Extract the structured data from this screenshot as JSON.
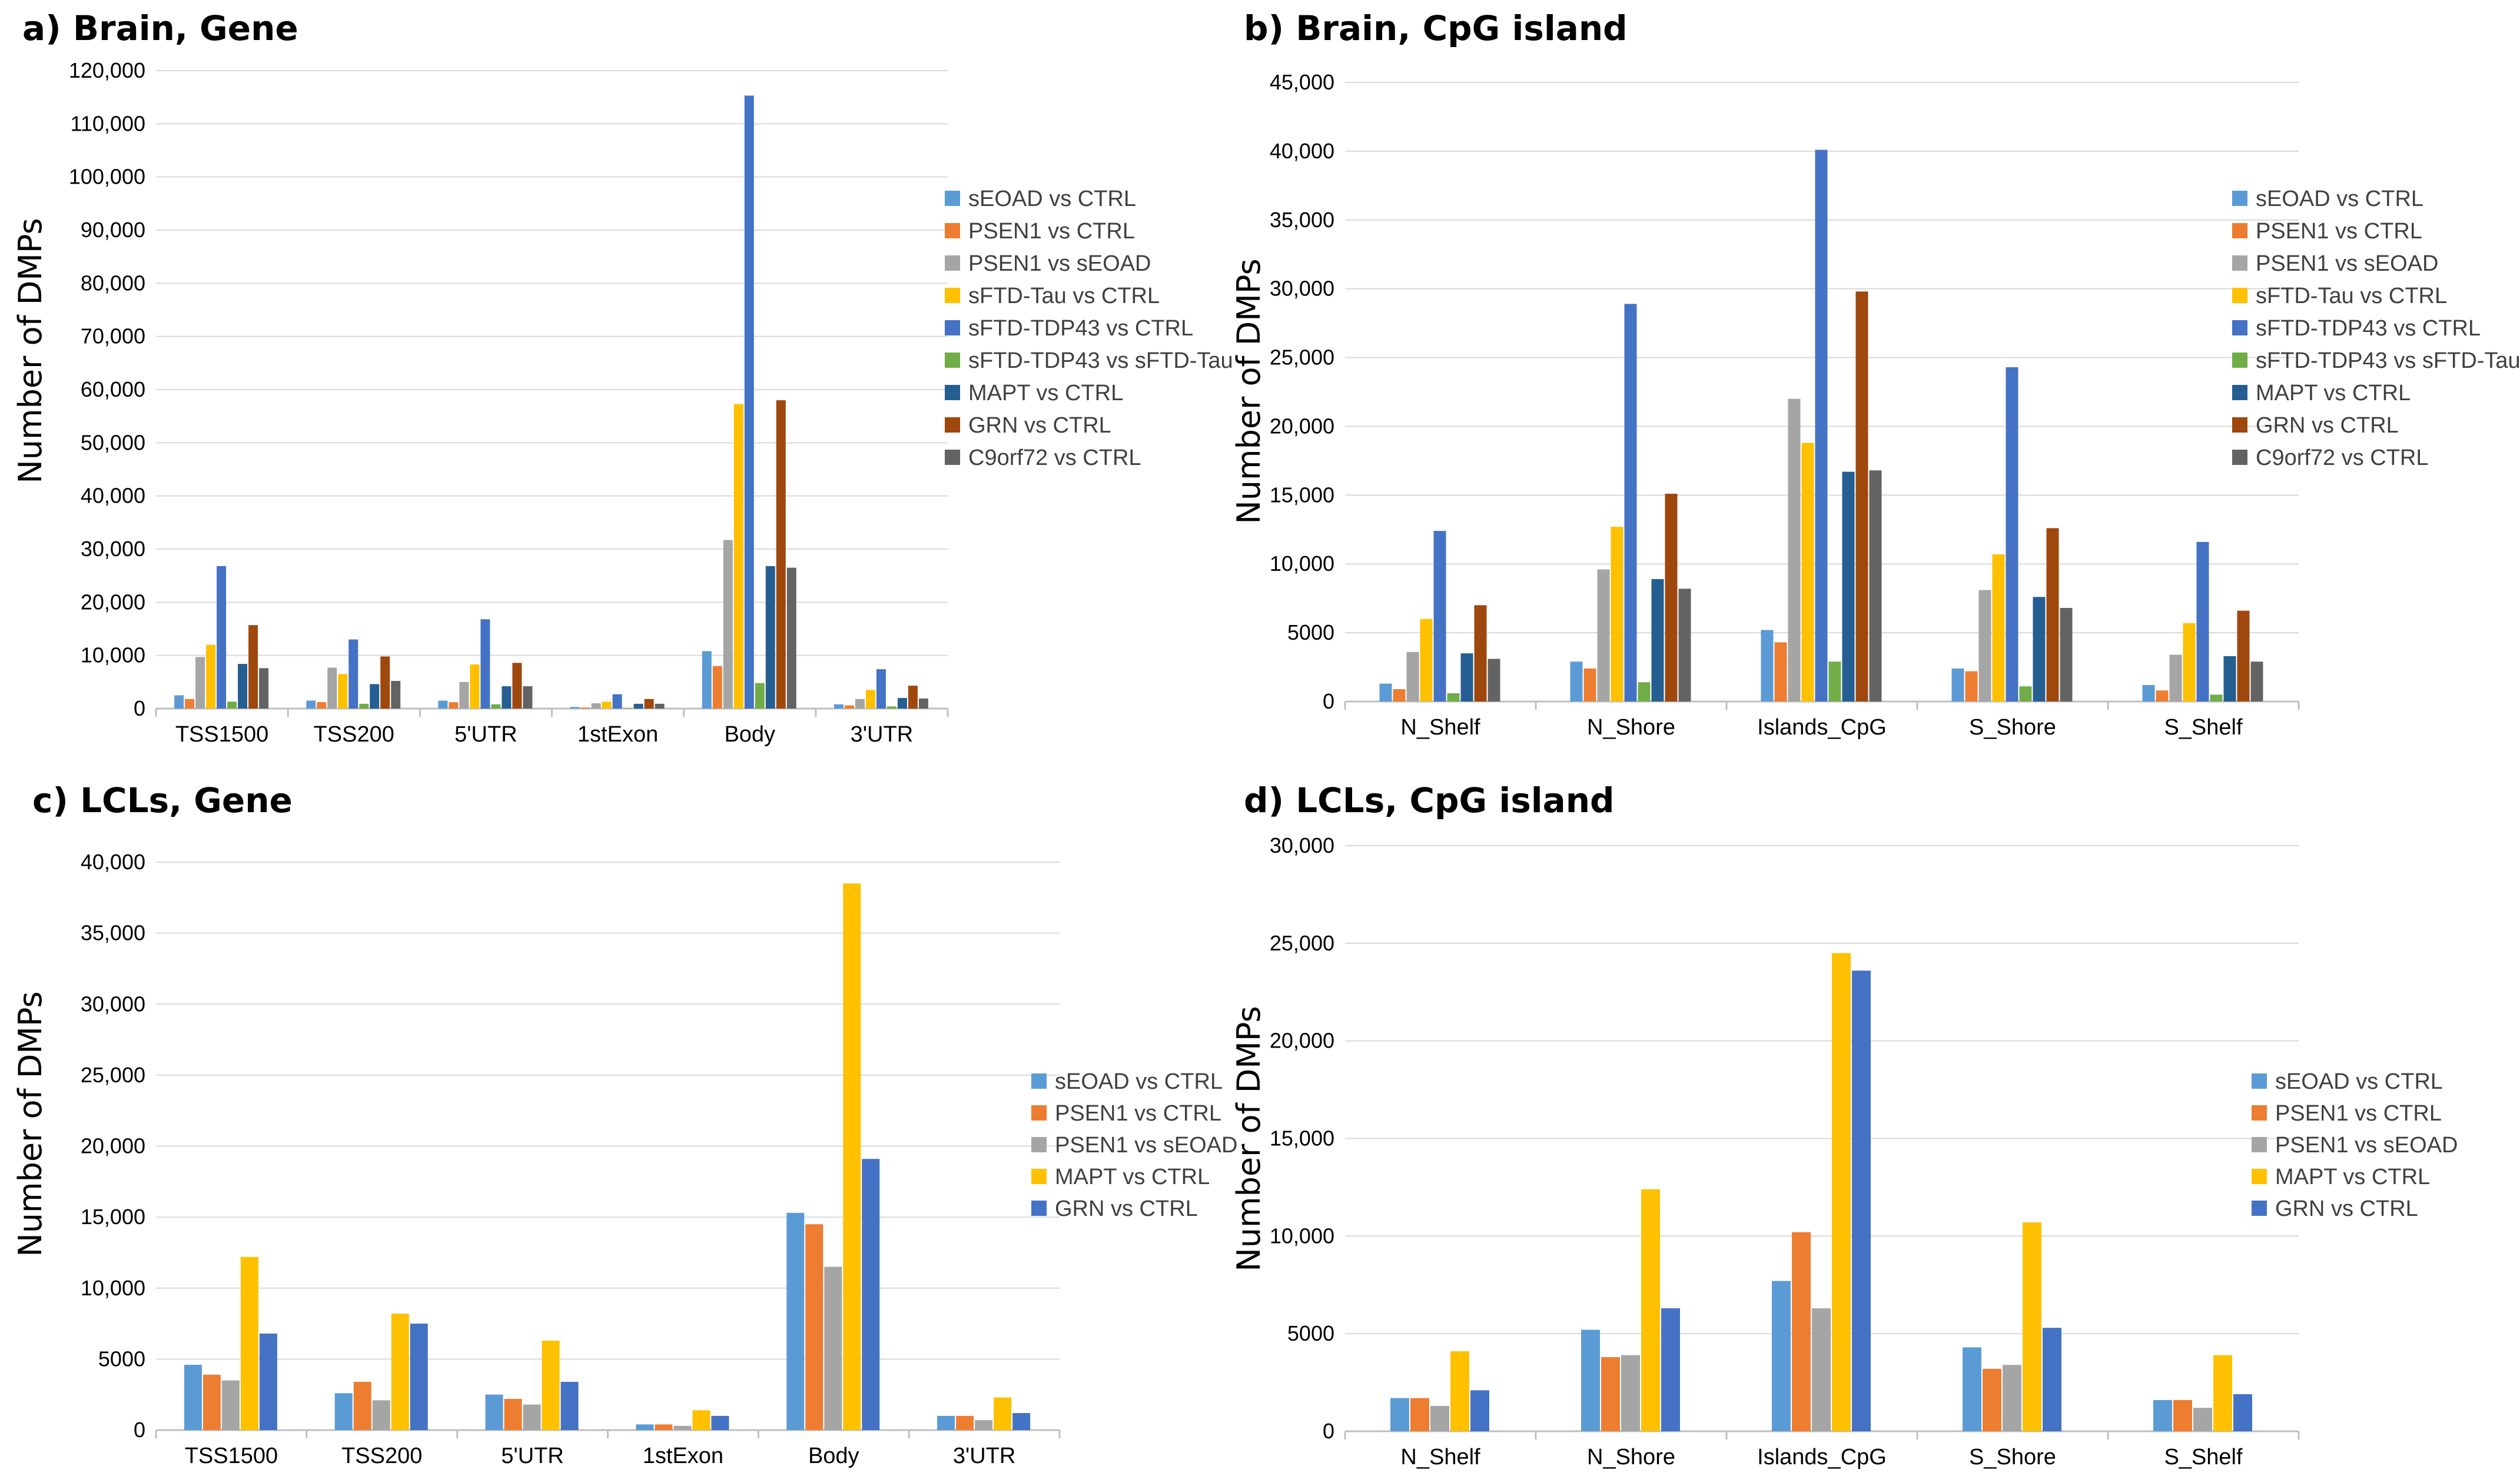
{
  "colors": {
    "sEOAD vs CTRL": "#5b9bd5",
    "PSEN1 vs CTRL": "#ed7d31",
    "PSEN1 vs sEOAD": "#a5a5a5",
    "sFTD-Tau vs CTRL": "#ffc000",
    "sFTD-TDP43 vs CTRL": "#4472c4",
    "sFTD-TDP43 vs sFTD-Tau": "#70ad47",
    "MAPT vs CTRL": "#255e91",
    "GRN vs CTRL": "#9e480e",
    "C9orf72 vs CTRL": "#636363",
    "MAPT vs CTRL (LCL)": "#ffc000",
    "GRN vs CTRL (LCL)": "#4472c4"
  },
  "chart_data": [
    {
      "type": "bar",
      "title": "a) Brain, Gene",
      "xlabel": "",
      "ylabel": "Number of DMPs",
      "ylim": [
        0,
        120000
      ],
      "yticks": [
        0,
        10000,
        20000,
        30000,
        40000,
        50000,
        60000,
        70000,
        80000,
        90000,
        100000,
        110000,
        120000
      ],
      "ytick_labels": [
        "0",
        "10,000",
        "20,000",
        "30,000",
        "40,000",
        "50,000",
        "60,000",
        "70,000",
        "80,000",
        "90,000",
        "100,000",
        "110,000",
        "120,000"
      ],
      "grid": true,
      "legend": "right",
      "categories": [
        "TSS1500",
        "TSS200",
        "5'UTR",
        "1stExon",
        "Body",
        "3'UTR"
      ],
      "series": [
        {
          "name": "sEOAD vs CTRL",
          "values": [
            2500,
            1500,
            1500,
            300,
            10800,
            800
          ]
        },
        {
          "name": "PSEN1 vs CTRL",
          "values": [
            1800,
            1200,
            1200,
            200,
            8000,
            600
          ]
        },
        {
          "name": "PSEN1 vs sEOAD",
          "values": [
            9700,
            7700,
            5000,
            1000,
            31700,
            1800
          ]
        },
        {
          "name": "sFTD-Tau vs CTRL",
          "values": [
            12000,
            6500,
            8300,
            1300,
            57300,
            3500
          ]
        },
        {
          "name": "sFTD-TDP43 vs CTRL",
          "values": [
            26800,
            13000,
            16800,
            2700,
            115300,
            7400
          ]
        },
        {
          "name": "sFTD-TDP43 vs sFTD-Tau",
          "values": [
            1300,
            900,
            800,
            100,
            4800,
            400
          ]
        },
        {
          "name": "MAPT vs CTRL",
          "values": [
            8400,
            4600,
            4200,
            900,
            26800,
            2000
          ]
        },
        {
          "name": "GRN vs CTRL",
          "values": [
            15700,
            9800,
            8600,
            1800,
            58000,
            4300
          ]
        },
        {
          "name": "C9orf72 vs CTRL",
          "values": [
            7600,
            5200,
            4200,
            900,
            26500,
            1900
          ]
        }
      ]
    },
    {
      "type": "bar",
      "title": "b) Brain, CpG island",
      "xlabel": "",
      "ylabel": "Number of DMPs",
      "ylim": [
        0,
        45000
      ],
      "yticks": [
        0,
        5000,
        10000,
        15000,
        20000,
        25000,
        30000,
        35000,
        40000,
        45000
      ],
      "ytick_labels": [
        "0",
        "5000",
        "10,000",
        "15,000",
        "20,000",
        "25,000",
        "30,000",
        "35,000",
        "40,000",
        "45,000"
      ],
      "grid": true,
      "legend": "right",
      "categories": [
        "N_Shelf",
        "N_Shore",
        "Islands_CpG",
        "S_Shore",
        "S_Shelf"
      ],
      "series": [
        {
          "name": "sEOAD vs CTRL",
          "values": [
            1300,
            2900,
            5200,
            2400,
            1200
          ]
        },
        {
          "name": "PSEN1 vs CTRL",
          "values": [
            900,
            2400,
            4300,
            2200,
            800
          ]
        },
        {
          "name": "PSEN1 vs sEOAD",
          "values": [
            3600,
            9600,
            22000,
            8100,
            3400
          ]
        },
        {
          "name": "sFTD-Tau vs CTRL",
          "values": [
            6000,
            12700,
            18800,
            10700,
            5700
          ]
        },
        {
          "name": "sFTD-TDP43 vs CTRL",
          "values": [
            12400,
            28900,
            40100,
            24300,
            11600
          ]
        },
        {
          "name": "sFTD-TDP43 vs sFTD-Tau",
          "values": [
            600,
            1400,
            2900,
            1100,
            500
          ]
        },
        {
          "name": "MAPT vs CTRL",
          "values": [
            3500,
            8900,
            16700,
            7600,
            3300
          ]
        },
        {
          "name": "GRN vs CTRL",
          "values": [
            7000,
            15100,
            29800,
            12600,
            6600
          ]
        },
        {
          "name": "C9orf72 vs CTRL",
          "values": [
            3100,
            8200,
            16800,
            6800,
            2900
          ]
        }
      ]
    },
    {
      "type": "bar",
      "title": "c) LCLs, Gene",
      "xlabel": "",
      "ylabel": "Number of DMPs",
      "ylim": [
        0,
        40000
      ],
      "yticks": [
        0,
        5000,
        10000,
        15000,
        20000,
        25000,
        30000,
        35000,
        40000
      ],
      "ytick_labels": [
        "0",
        "5000",
        "10,000",
        "15,000",
        "20,000",
        "25,000",
        "30,000",
        "35,000",
        "40,000"
      ],
      "grid": true,
      "legend": "right",
      "categories": [
        "TSS1500",
        "TSS200",
        "5'UTR",
        "1stExon",
        "Body",
        "3'UTR"
      ],
      "series": [
        {
          "name": "sEOAD vs CTRL",
          "values": [
            4600,
            2600,
            2500,
            400,
            15300,
            1000
          ]
        },
        {
          "name": "PSEN1 vs CTRL",
          "values": [
            3900,
            3400,
            2200,
            400,
            14500,
            1000
          ]
        },
        {
          "name": "PSEN1 vs sEOAD",
          "values": [
            3500,
            2100,
            1800,
            300,
            11500,
            700
          ]
        },
        {
          "name": "MAPT vs CTRL",
          "values": [
            12200,
            8200,
            6300,
            1400,
            38500,
            2300
          ]
        },
        {
          "name": "GRN vs CTRL",
          "values": [
            6800,
            7500,
            3400,
            1000,
            19100,
            1200
          ]
        }
      ]
    },
    {
      "type": "bar",
      "title": "d) LCLs, CpG island",
      "xlabel": "",
      "ylabel": "Number of DMPs",
      "ylim": [
        0,
        30000
      ],
      "yticks": [
        0,
        5000,
        10000,
        15000,
        20000,
        25000,
        30000
      ],
      "ytick_labels": [
        "0",
        "5000",
        "10,000",
        "15,000",
        "20,000",
        "25,000",
        "30,000"
      ],
      "grid": true,
      "legend": "right",
      "categories": [
        "N_Shelf",
        "N_Shore",
        "Islands_CpG",
        "S_Shore",
        "S_Shelf"
      ],
      "series": [
        {
          "name": "sEOAD vs CTRL",
          "values": [
            1700,
            5200,
            7700,
            4300,
            1600
          ]
        },
        {
          "name": "PSEN1 vs CTRL",
          "values": [
            1700,
            3800,
            10200,
            3200,
            1600
          ]
        },
        {
          "name": "PSEN1 vs sEOAD",
          "values": [
            1300,
            3900,
            6300,
            3400,
            1200
          ]
        },
        {
          "name": "MAPT vs CTRL",
          "values": [
            4100,
            12400,
            24500,
            10700,
            3900
          ]
        },
        {
          "name": "GRN vs CTRL",
          "values": [
            2100,
            6300,
            23600,
            5300,
            1900
          ]
        }
      ]
    }
  ]
}
